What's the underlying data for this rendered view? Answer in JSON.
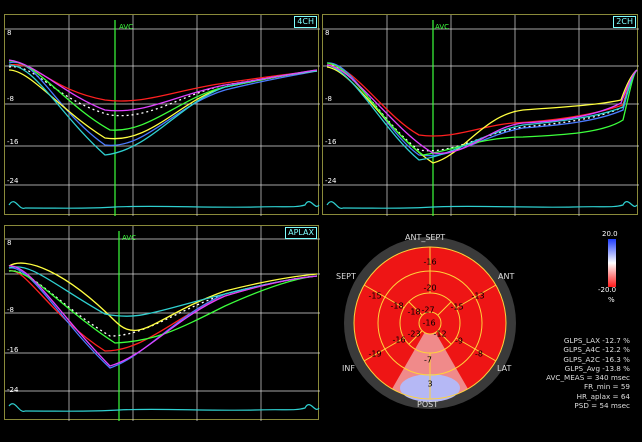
{
  "panels": [
    {
      "key": "p4ch",
      "label": "4CH",
      "yticks": [
        "8",
        "-8",
        "-16",
        "-24"
      ],
      "avc_label": "AVC"
    },
    {
      "key": "p2ch",
      "label": "2CH",
      "yticks": [
        "8",
        "-8",
        "-16",
        "-24"
      ],
      "avc_label": "AVC"
    },
    {
      "key": "paplax",
      "label": "APLAX",
      "yticks": [
        "8",
        "-8",
        "-16",
        "-24"
      ],
      "avc_label": "AVC"
    }
  ],
  "bullseye": {
    "labels": {
      "ant_sept": "ANT_SEPT",
      "ant": "ANT",
      "lat": "LAT",
      "post": "POST",
      "inf": "INF",
      "sept": "SEPT"
    },
    "segments": {
      "b_antsept": "-16",
      "b_ant": "-13",
      "b_lat": "-8",
      "b_post": "3",
      "b_inf": "-19",
      "b_sept": "-15",
      "m_antsept": "-20",
      "m_ant": "-15",
      "m_lat": "-9",
      "m_post": "-7",
      "m_inf": "-16",
      "m_sept": "-18",
      "a_ant": "-27",
      "a_lat": "-12",
      "a_inf": "-23",
      "a_sept": "-18",
      "apex": "-16"
    }
  },
  "colorbar": {
    "max": "20.0",
    "min": "-20.0",
    "unit": "%"
  },
  "stats": [
    "GLPS_LAX  -12.7 %",
    "GLPS_A4C  -12.2 %",
    "GLPS_A2C  -16.3 %",
    "GLPS_Avg  -13.8 %",
    "AVC_MEAS = 340 msec",
    "FR_min = 59",
    "HR_aplax = 64",
    "PSD = 54 msec"
  ],
  "colors": {
    "avc": "#3cff3c",
    "ecg": "#2fd0d0",
    "grid": "#dddddd",
    "border": "#8a8a3a"
  }
}
